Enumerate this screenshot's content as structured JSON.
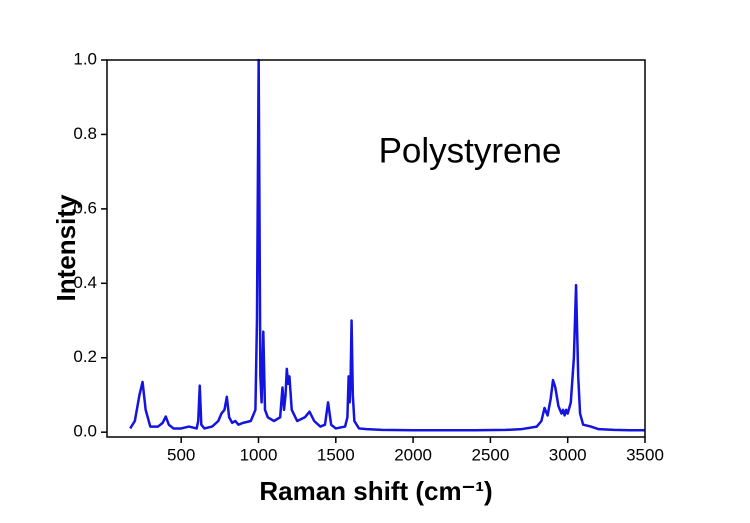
{
  "chart_data": {
    "type": "line",
    "annotation": "Polystyrene",
    "xlabel": "Raman shift (cm⁻¹)",
    "ylabel": "Intensity",
    "x": [
      170,
      200,
      230,
      250,
      270,
      300,
      350,
      380,
      400,
      420,
      450,
      500,
      550,
      600,
      610,
      620,
      630,
      650,
      700,
      740,
      760,
      780,
      795,
      810,
      830,
      850,
      870,
      900,
      950,
      980,
      990,
      1001,
      1012,
      1020,
      1031,
      1042,
      1060,
      1100,
      1140,
      1155,
      1165,
      1175,
      1183,
      1192,
      1200,
      1215,
      1250,
      1300,
      1330,
      1360,
      1400,
      1430,
      1450,
      1470,
      1500,
      1560,
      1575,
      1583,
      1590,
      1596,
      1602,
      1610,
      1620,
      1650,
      1700,
      1800,
      2000,
      2200,
      2400,
      2600,
      2700,
      2800,
      2830,
      2850,
      2870,
      2890,
      2905,
      2920,
      2940,
      2960,
      2970,
      2980,
      2990,
      3000,
      3020,
      3040,
      3054,
      3068,
      3080,
      3100,
      3150,
      3200,
      3300,
      3400,
      3500
    ],
    "series": [
      {
        "name": "Polystyrene",
        "color": "#1414e0",
        "values": [
          0.01,
          0.03,
          0.1,
          0.135,
          0.06,
          0.015,
          0.015,
          0.025,
          0.042,
          0.02,
          0.01,
          0.01,
          0.015,
          0.01,
          0.03,
          0.125,
          0.02,
          0.01,
          0.015,
          0.03,
          0.05,
          0.06,
          0.095,
          0.04,
          0.025,
          0.03,
          0.02,
          0.025,
          0.03,
          0.06,
          0.3,
          1.0,
          0.15,
          0.08,
          0.27,
          0.06,
          0.04,
          0.03,
          0.04,
          0.12,
          0.06,
          0.1,
          0.17,
          0.13,
          0.15,
          0.06,
          0.03,
          0.04,
          0.055,
          0.03,
          0.015,
          0.02,
          0.08,
          0.02,
          0.01,
          0.015,
          0.04,
          0.15,
          0.08,
          0.15,
          0.3,
          0.1,
          0.03,
          0.01,
          0.008,
          0.006,
          0.005,
          0.005,
          0.005,
          0.006,
          0.008,
          0.015,
          0.03,
          0.065,
          0.045,
          0.09,
          0.14,
          0.12,
          0.07,
          0.05,
          0.06,
          0.045,
          0.06,
          0.05,
          0.08,
          0.2,
          0.395,
          0.15,
          0.05,
          0.02,
          0.015,
          0.008,
          0.006,
          0.005,
          0.005
        ]
      }
    ],
    "xlim": [
      20,
      3500
    ],
    "ylim": [
      -0.013,
      1.0
    ],
    "xticks": [
      500,
      1000,
      1500,
      2000,
      2500,
      3000,
      3500
    ],
    "yticks": [
      {
        "value": 0,
        "label": "0.0"
      },
      0.2,
      0.4,
      0.6,
      0.8,
      {
        "value": 1,
        "label": "1.0"
      }
    ]
  }
}
